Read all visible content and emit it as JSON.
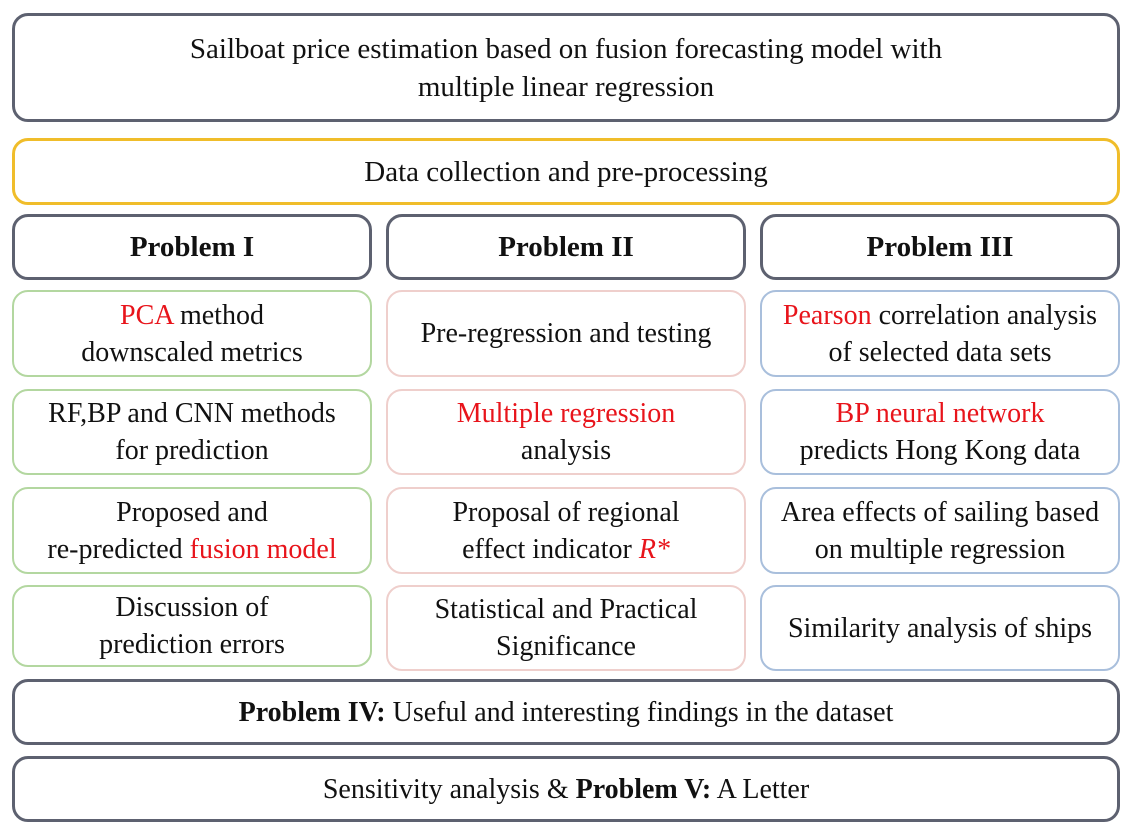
{
  "header": {
    "title_line1": "Sailboat price estimation based on fusion forecasting model with",
    "title_line2": "multiple linear regression"
  },
  "data_step": "Data collection and pre-processing",
  "columns": [
    {
      "heading": "Problem I",
      "steps": [
        {
          "red": "PCA",
          "rest": " method",
          "line2": "downscaled metrics"
        },
        {
          "line1": "RF,BP and CNN methods",
          "line2": "for prediction"
        },
        {
          "line1": "Proposed and",
          "line2_prefix": "re-predicted ",
          "line2_red": "fusion model"
        },
        {
          "line1": "Discussion of",
          "line2": "prediction errors"
        }
      ]
    },
    {
      "heading": "Problem II",
      "steps": [
        {
          "line1": "Pre-regression and testing"
        },
        {
          "red": "Multiple regression",
          "line2": "analysis"
        },
        {
          "line1": "Proposal of regional",
          "line2_prefix": "effect indicator ",
          "line2_red": "R*"
        },
        {
          "line1": "Statistical and Practical",
          "line2": "Significance"
        }
      ]
    },
    {
      "heading": "Problem III",
      "steps": [
        {
          "red": "Pearson",
          "rest": " correlation analysis",
          "line2": "of selected data sets"
        },
        {
          "red": "BP neural network",
          "line2": "predicts Hong Kong data"
        },
        {
          "line1": "Area effects of sailing based",
          "line2": "on multiple regression"
        },
        {
          "line1": "Similarity analysis of ships"
        }
      ]
    }
  ],
  "problem4": {
    "bold": "Problem IV:",
    "rest": " Useful and interesting findings in the dataset"
  },
  "footer": {
    "prefix": "Sensitivity analysis & ",
    "bold": "Problem V:",
    "rest": " A Letter"
  },
  "colors": {
    "frame": "#5d6170",
    "data_frame": "#f0bd2a",
    "problem1_frame": "#b3d7a0",
    "problem2_frame": "#efcfcc",
    "problem3_frame": "#a9bfdc",
    "highlight": "#e8141b"
  }
}
